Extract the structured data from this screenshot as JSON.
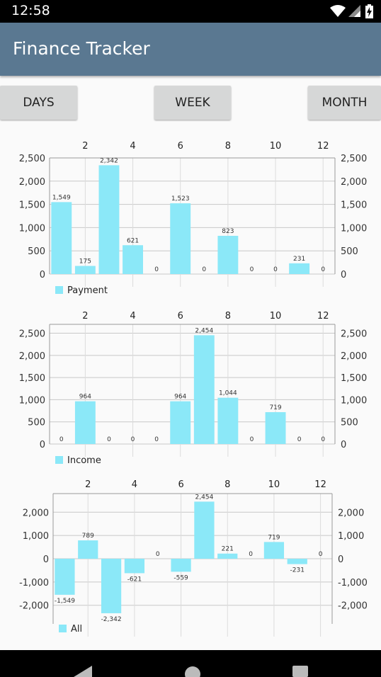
{
  "status_bar": {
    "time": "12:58"
  },
  "app_bar": {
    "title": "Finance Tracker"
  },
  "range_buttons": {
    "days": "DAYS",
    "week": "WEEK",
    "month": "MONTH"
  },
  "colors": {
    "bar": "#8be8f8",
    "app_bar": "#5a7891",
    "button": "#d6d7d7"
  },
  "chart_data": [
    {
      "type": "bar",
      "x": [
        1,
        2,
        3,
        4,
        5,
        6,
        7,
        8,
        9,
        10,
        11,
        12
      ],
      "x_ticks": [
        2,
        4,
        6,
        8,
        10,
        12
      ],
      "series": [
        {
          "name": "Payment",
          "values": [
            1549,
            175,
            2342,
            621,
            0,
            1523,
            0,
            823,
            0,
            0,
            231,
            0
          ]
        }
      ],
      "value_labels": [
        "1,549",
        "175",
        "2,342",
        "621",
        "0",
        "1,523",
        "0",
        "823",
        "0",
        "0",
        "231",
        "0"
      ],
      "y_ticks": [
        0,
        500,
        1000,
        1500,
        2000,
        2500
      ],
      "y_tick_labels": [
        "0",
        "500",
        "1,000",
        "1,500",
        "2,000",
        "2,500"
      ],
      "ylim": [
        0,
        2500
      ],
      "legend": "bottom-left"
    },
    {
      "type": "bar",
      "x": [
        1,
        2,
        3,
        4,
        5,
        6,
        7,
        8,
        9,
        10,
        11,
        12
      ],
      "x_ticks": [
        2,
        4,
        6,
        8,
        10,
        12
      ],
      "series": [
        {
          "name": "Income",
          "values": [
            0,
            964,
            0,
            0,
            0,
            964,
            2454,
            1044,
            0,
            719,
            0,
            0
          ]
        }
      ],
      "value_labels": [
        "0",
        "964",
        "0",
        "0",
        "0",
        "964",
        "2,454",
        "1,044",
        "0",
        "719",
        "0",
        "0"
      ],
      "y_ticks": [
        0,
        500,
        1000,
        1500,
        2000,
        2500
      ],
      "y_tick_labels": [
        "0",
        "500",
        "1,000",
        "1,500",
        "2,000",
        "2,500"
      ],
      "ylim": [
        0,
        2700
      ],
      "legend": "bottom-left"
    },
    {
      "type": "bar",
      "x": [
        1,
        2,
        3,
        4,
        5,
        6,
        7,
        8,
        9,
        10,
        11,
        12
      ],
      "x_ticks": [
        2,
        4,
        6,
        8,
        10,
        12
      ],
      "series": [
        {
          "name": "All",
          "values": [
            -1549,
            789,
            -2342,
            -621,
            0,
            -559,
            2454,
            221,
            0,
            719,
            -231,
            0
          ]
        }
      ],
      "value_labels": [
        "-1,549",
        "789",
        "-2,342",
        "-621",
        "0",
        "-559",
        "2,454",
        "221",
        "0",
        "719",
        "-231",
        "0"
      ],
      "y_ticks": [
        -2000,
        -1000,
        0,
        1000,
        2000
      ],
      "y_tick_labels": [
        "-2,000",
        "-1,000",
        "0",
        "1,000",
        "2,000"
      ],
      "ylim": [
        -2800,
        2800
      ],
      "legend": "bottom-left"
    }
  ]
}
